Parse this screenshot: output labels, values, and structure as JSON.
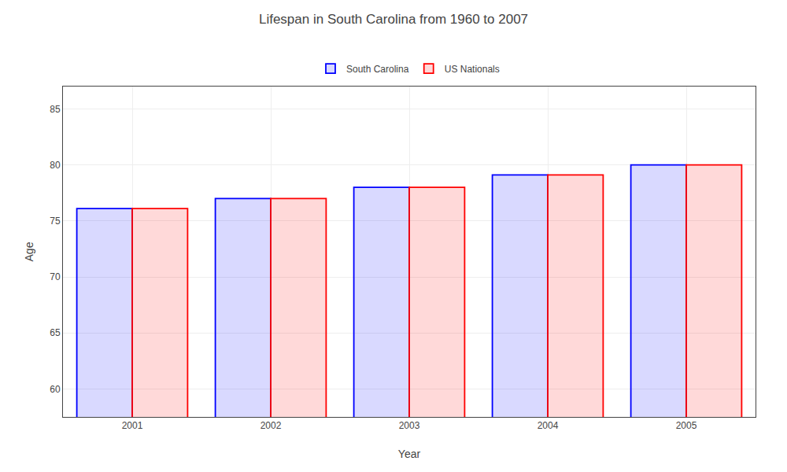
{
  "chart_data": {
    "type": "bar",
    "title": "Lifespan in South Carolina from 1960 to 2007",
    "xlabel": "Year",
    "ylabel": "Age",
    "categories": [
      "2001",
      "2002",
      "2003",
      "2004",
      "2005"
    ],
    "series": [
      {
        "name": "South Carolina",
        "color": "#0000ff",
        "values": [
          76.1,
          77.0,
          78.0,
          79.1,
          80.0
        ]
      },
      {
        "name": "US Nationals",
        "color": "#ff0000",
        "values": [
          76.1,
          77.0,
          78.0,
          79.1,
          80.0
        ]
      }
    ],
    "ylim": [
      57.5,
      87
    ],
    "yticks": [
      60,
      65,
      70,
      75,
      80,
      85
    ],
    "grid": true,
    "legend": "upper center"
  }
}
